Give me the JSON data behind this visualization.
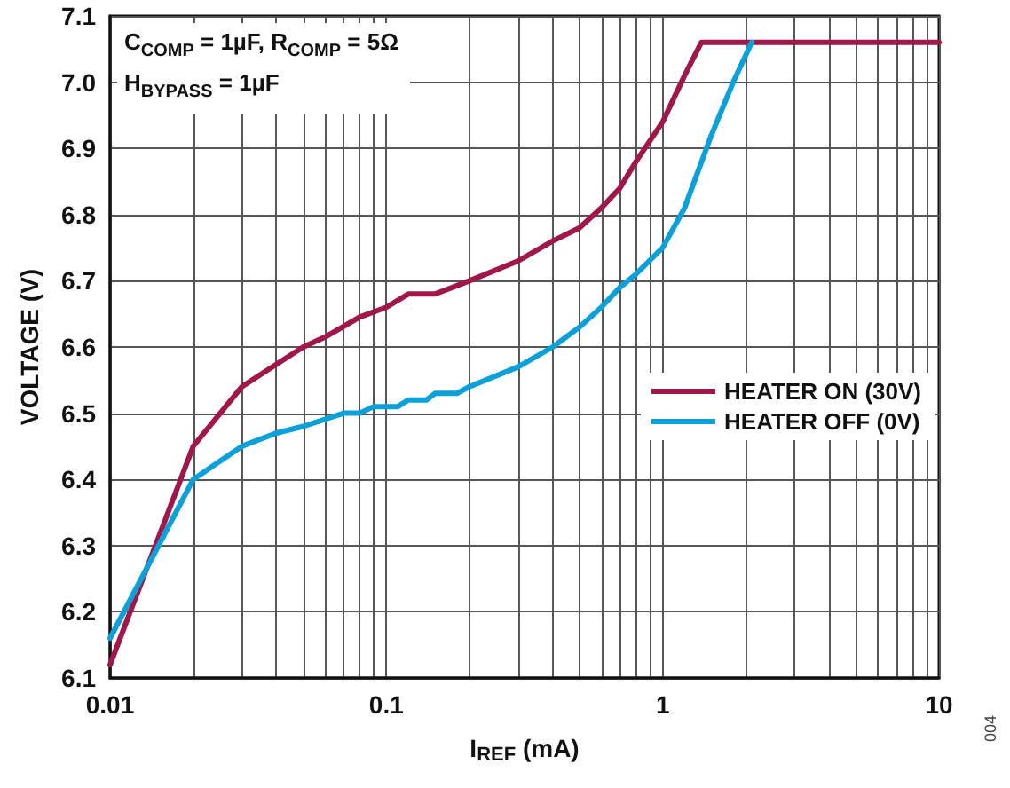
{
  "chart_data": {
    "type": "line",
    "xlabel": "I$_{REF}$ (mA)",
    "ylabel": "VOLTAGE (V)",
    "annotations": [
      "C$_{COMP}$ = 1µF, R$_{COMP}$ = 5Ω",
      "H$_{BYPASS}$ = 1µF",
      "004"
    ],
    "log": "x",
    "grid": true,
    "legend": "right",
    "marker": "none",
    "line_style": "solid",
    "xlim": [
      0.01,
      10
    ],
    "xticks": [
      0.01,
      {
        "value": 0.02,
        "label": null
      },
      {
        "value": 0.03,
        "label": null
      },
      {
        "value": 0.04,
        "label": null
      },
      {
        "value": 0.05,
        "label": null
      },
      {
        "value": 0.06,
        "label": null
      },
      {
        "value": 0.07,
        "label": null
      },
      {
        "value": 0.08,
        "label": null
      },
      {
        "value": 0.09,
        "label": null
      },
      0.1,
      {
        "value": 0.2,
        "label": null
      },
      {
        "value": 0.3,
        "label": null
      },
      {
        "value": 0.4,
        "label": null
      },
      {
        "value": 0.5,
        "label": null
      },
      {
        "value": 0.6,
        "label": null
      },
      {
        "value": 0.7,
        "label": null
      },
      {
        "value": 0.8,
        "label": null
      },
      {
        "value": 0.9,
        "label": null
      },
      1,
      {
        "value": 2,
        "label": null
      },
      {
        "value": 3,
        "label": null
      },
      {
        "value": 4,
        "label": null
      },
      {
        "value": 5,
        "label": null
      },
      {
        "value": 6,
        "label": null
      },
      {
        "value": 7,
        "label": null
      },
      {
        "value": 8,
        "label": null
      },
      {
        "value": 9,
        "label": null
      },
      10
    ],
    "ylim": [
      6.1,
      7.1
    ],
    "yticks": [
      6.1,
      6.2,
      6.3,
      6.4,
      6.5,
      6.6,
      6.7,
      6.8,
      6.9,
      {
        "value": 7.0,
        "label": "7.0"
      },
      7.1
    ],
    "series": [
      {
        "name": "HEATER ON (30V)",
        "color": "#a0184a",
        "x": [
          0.01,
          0.02,
          0.03,
          0.05,
          0.06,
          0.08,
          0.1,
          0.12,
          0.15,
          0.2,
          0.3,
          0.4,
          0.5,
          0.6,
          0.7,
          0.8,
          1.0,
          1.2,
          1.38,
          10
        ],
        "values": [
          6.12,
          6.45,
          6.54,
          6.6,
          6.615,
          6.645,
          6.66,
          6.68,
          6.68,
          6.7,
          6.73,
          6.76,
          6.78,
          6.81,
          6.84,
          6.88,
          6.94,
          7.01,
          7.06,
          7.06
        ]
      },
      {
        "name": "HEATER OFF (0V)",
        "color": "#0ca0d8",
        "x": [
          0.01,
          0.02,
          0.03,
          0.04,
          0.05,
          0.07,
          0.08,
          0.09,
          0.11,
          0.12,
          0.14,
          0.15,
          0.18,
          0.2,
          0.3,
          0.4,
          0.5,
          0.6,
          0.7,
          0.8,
          1.0,
          1.2,
          1.5,
          1.8,
          2.1
        ],
        "values": [
          6.16,
          6.4,
          6.45,
          6.47,
          6.48,
          6.5,
          6.5,
          6.51,
          6.51,
          6.52,
          6.52,
          6.53,
          6.53,
          6.54,
          6.57,
          6.6,
          6.63,
          6.66,
          6.69,
          6.71,
          6.75,
          6.81,
          6.92,
          7.0,
          7.06
        ]
      }
    ]
  }
}
